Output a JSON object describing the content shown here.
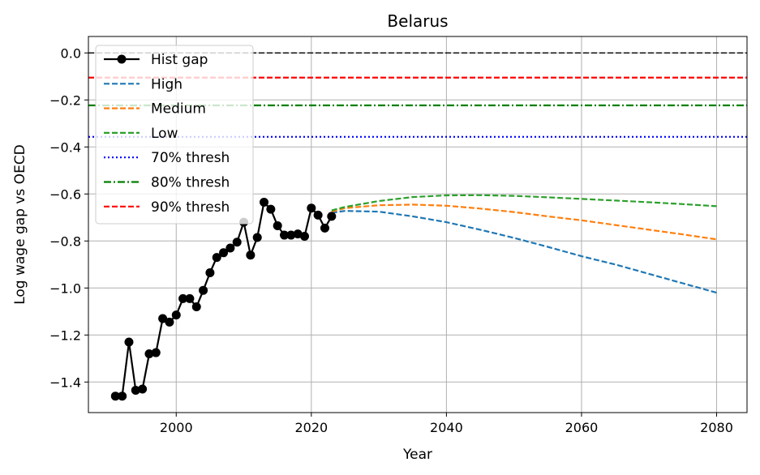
{
  "chart_data": {
    "type": "line",
    "title": "Belarus",
    "xlabel": "Year",
    "ylabel": "Log wage gap vs OECD",
    "xlim": [
      1987,
      2084.5
    ],
    "ylim": [
      -1.53,
      0.07
    ],
    "xticks": [
      2000,
      2020,
      2040,
      2060,
      2080
    ],
    "yticks": [
      0.0,
      -0.2,
      -0.4,
      -0.6,
      -0.8,
      -1.0,
      -1.2,
      -1.4
    ],
    "xtick_labels": [
      "2000",
      "2020",
      "2040",
      "2060",
      "2080"
    ],
    "ytick_labels": [
      "0.0",
      "−0.2",
      "−0.4",
      "−0.6",
      "−0.8",
      "−1.0",
      "−1.2",
      "−1.4"
    ],
    "grid": true,
    "legend_position": "upper-left",
    "series": [
      {
        "name": "Hist gap",
        "style": "solid-marker",
        "color": "#000000",
        "x": [
          1991,
          1992,
          1993,
          1994,
          1995,
          1996,
          1997,
          1998,
          1999,
          2000,
          2001,
          2002,
          2003,
          2004,
          2005,
          2006,
          2007,
          2008,
          2009,
          2010,
          2011,
          2012,
          2013,
          2014,
          2015,
          2016,
          2017,
          2018,
          2019,
          2020,
          2021,
          2022,
          2023
        ],
        "y": [
          -1.46,
          -1.46,
          -1.23,
          -1.435,
          -1.43,
          -1.28,
          -1.275,
          -1.13,
          -1.145,
          -1.115,
          -1.045,
          -1.045,
          -1.08,
          -1.01,
          -0.935,
          -0.87,
          -0.85,
          -0.83,
          -0.805,
          -0.72,
          -0.86,
          -0.785,
          -0.635,
          -0.665,
          -0.735,
          -0.775,
          -0.775,
          -0.77,
          -0.78,
          -0.66,
          -0.69,
          -0.745,
          -0.695
        ]
      },
      {
        "name": "High",
        "style": "dashed",
        "color": "#1f77b4",
        "x": [
          2023,
          2025,
          2030,
          2035,
          2040,
          2045,
          2050,
          2055,
          2060,
          2065,
          2070,
          2075,
          2080
        ],
        "y": [
          -0.68,
          -0.672,
          -0.675,
          -0.695,
          -0.72,
          -0.752,
          -0.787,
          -0.825,
          -0.865,
          -0.9,
          -0.94,
          -0.98,
          -1.02
        ]
      },
      {
        "name": "Medium",
        "style": "dashed",
        "color": "#ff7f0e",
        "x": [
          2023,
          2025,
          2030,
          2035,
          2040,
          2045,
          2050,
          2055,
          2060,
          2065,
          2070,
          2075,
          2080
        ],
        "y": [
          -0.675,
          -0.66,
          -0.648,
          -0.645,
          -0.65,
          -0.662,
          -0.677,
          -0.695,
          -0.712,
          -0.732,
          -0.752,
          -0.772,
          -0.793
        ]
      },
      {
        "name": "Low",
        "style": "dashed",
        "color": "#2ca02c",
        "x": [
          2023,
          2025,
          2030,
          2035,
          2040,
          2045,
          2050,
          2055,
          2060,
          2065,
          2070,
          2075,
          2080
        ],
        "y": [
          -0.67,
          -0.655,
          -0.63,
          -0.613,
          -0.606,
          -0.605,
          -0.608,
          -0.614,
          -0.621,
          -0.628,
          -0.635,
          -0.643,
          -0.652
        ]
      },
      {
        "name": "70% thresh",
        "style": "dotted",
        "color": "#0000ff",
        "y_const": -0.357
      },
      {
        "name": "80% thresh",
        "style": "dashdot",
        "color": "#008000",
        "y_const": -0.223
      },
      {
        "name": "90% thresh",
        "style": "dashed",
        "color": "#ff0000",
        "y_const": -0.105
      }
    ],
    "reference_line": {
      "y": 0.0,
      "color": "#000000",
      "style": "dashed"
    }
  }
}
